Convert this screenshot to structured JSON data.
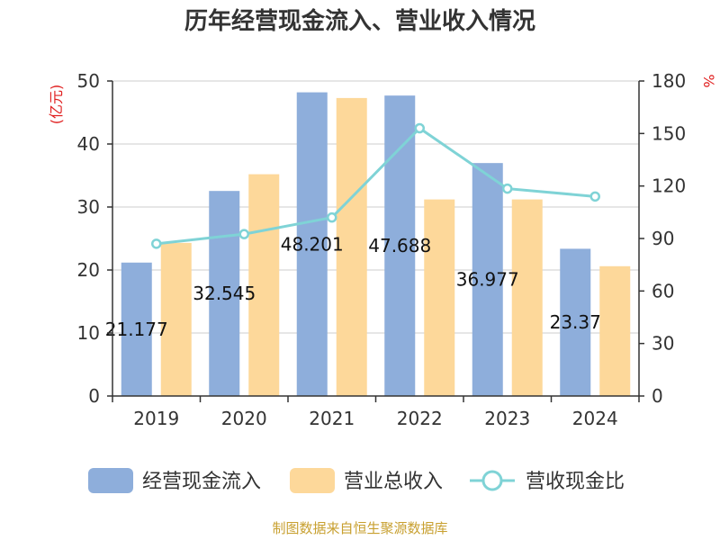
{
  "chart_data": {
    "type": "bar",
    "title": "历年经营现金流入、营业收入情况",
    "categories": [
      "2019",
      "2020",
      "2021",
      "2022",
      "2023",
      "2024"
    ],
    "y_left": {
      "unit": "(亿元)",
      "min": 0,
      "max": 50,
      "ticks": [
        0,
        10,
        20,
        30,
        40,
        50
      ]
    },
    "y_right": {
      "unit": "%",
      "min": 0,
      "max": 180,
      "ticks": [
        0,
        30,
        60,
        90,
        120,
        150,
        180
      ]
    },
    "grid": true,
    "legend_position": "bottom",
    "series": [
      {
        "name": "经营现金流入",
        "type": "bar",
        "axis": "left",
        "color": "#8eaedb",
        "values": [
          21.177,
          32.545,
          48.201,
          47.688,
          36.977,
          23.37
        ],
        "labels": [
          "21.177",
          "32.545",
          "48.201",
          "47.688",
          "36.977",
          "23.37"
        ]
      },
      {
        "name": "营业总收入",
        "type": "bar",
        "axis": "left",
        "color": "#fdd89a",
        "values": [
          24.3,
          35.2,
          47.3,
          31.2,
          31.2,
          20.6
        ]
      },
      {
        "name": "营收现金比",
        "type": "line",
        "axis": "right",
        "color": "#7fd3d6",
        "values": [
          87,
          92.5,
          102,
          153,
          118.5,
          114
        ]
      }
    ],
    "source": "制图数据来自恒生聚源数据库"
  }
}
